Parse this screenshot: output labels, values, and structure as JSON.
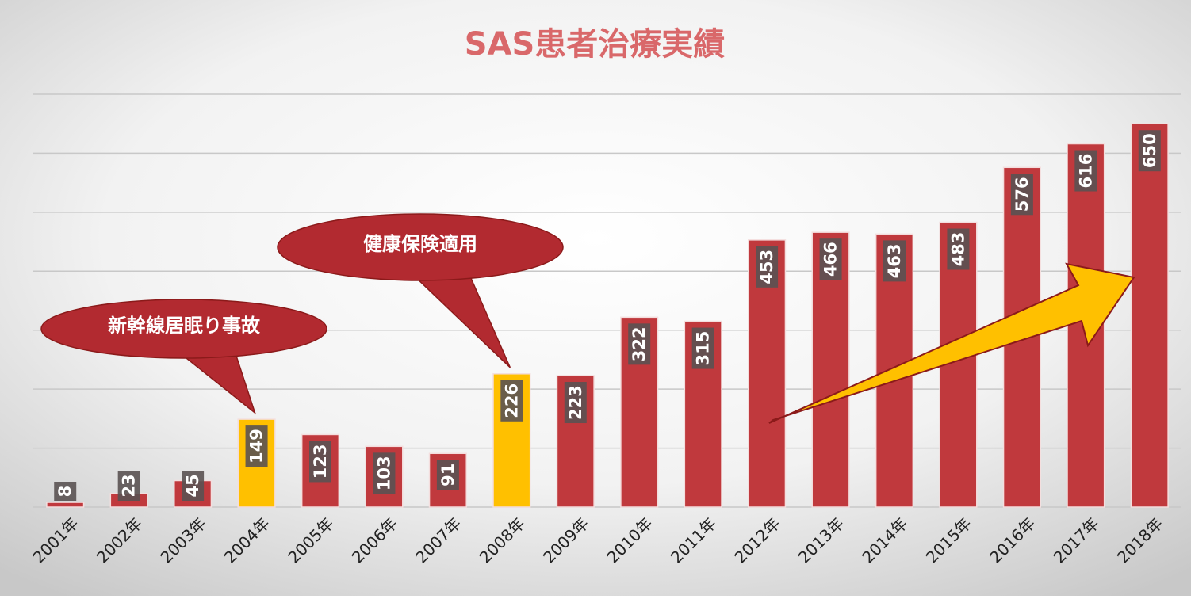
{
  "chart_data": {
    "type": "bar",
    "title": "SAS患者治療実績",
    "categories": [
      "2001年",
      "2002年",
      "2003年",
      "2004年",
      "2005年",
      "2006年",
      "2007年",
      "2008年",
      "2009年",
      "2010年",
      "2011年",
      "2012年",
      "2013年",
      "2014年",
      "2015年",
      "2016年",
      "2017年",
      "2018年"
    ],
    "values": [
      8,
      23,
      45,
      149,
      123,
      103,
      91,
      226,
      223,
      322,
      315,
      453,
      466,
      463,
      483,
      576,
      616,
      650
    ],
    "colors": [
      "#c0393d",
      "#c0393d",
      "#c0393d",
      "#ffc000",
      "#c0393d",
      "#c0393d",
      "#c0393d",
      "#ffc000",
      "#c0393d",
      "#c0393d",
      "#c0393d",
      "#c0393d",
      "#c0393d",
      "#c0393d",
      "#c0393d",
      "#c0393d",
      "#c0393d",
      "#c0393d"
    ],
    "ylim": [
      0,
      700
    ],
    "yticks": [
      0,
      100,
      200,
      300,
      400,
      500,
      600,
      700
    ],
    "ytick_labels": false,
    "grid": true,
    "annotations": [
      {
        "text": "新幹線居眠り事故",
        "category": "2004年"
      },
      {
        "text": "健康保険適用",
        "category": "2008年"
      }
    ]
  }
}
